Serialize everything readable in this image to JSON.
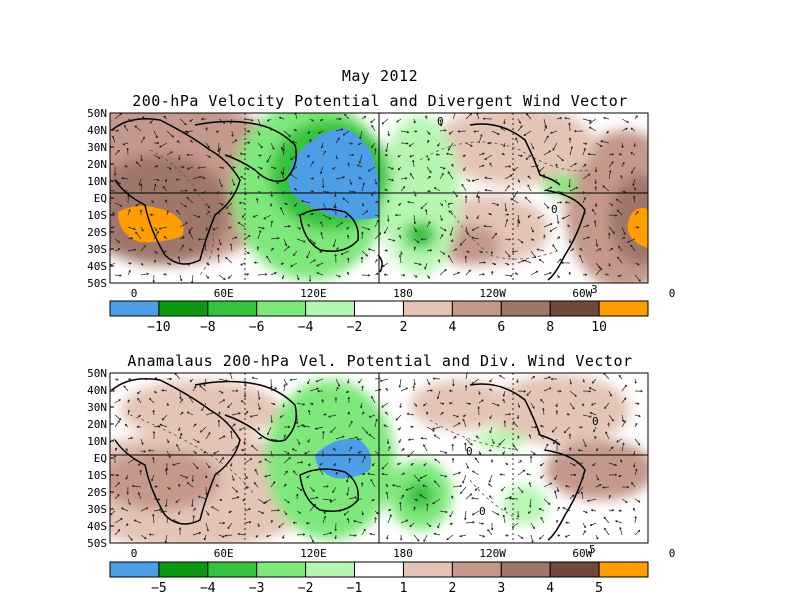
{
  "titles": {
    "month": "May 2012",
    "top": "200-hPa Velocity Potential and Divergent Wind Vector",
    "bottom": "Anamalaus 200-hPa Vel. Potential and Div. Wind Vector"
  },
  "axes": {
    "lat_labels": [
      "50N",
      "40N",
      "30N",
      "20N",
      "10N",
      "EQ",
      "10S",
      "20S",
      "30S",
      "40S",
      "50S"
    ],
    "lon_labels": [
      "0",
      "60E",
      "120E",
      "180",
      "120W",
      "60W",
      "0"
    ]
  },
  "vector_reference": {
    "top": "3",
    "bottom": "5"
  },
  "colorbar_top": {
    "labels": [
      "−10",
      "−8",
      "−6",
      "−4",
      "−2",
      "2",
      "4",
      "6",
      "8",
      "10"
    ],
    "colors": [
      "#4d9ee6",
      "#0d9a12",
      "#35c23d",
      "#7ee87a",
      "#b6f7b0",
      "#ffffff",
      "#e4c4b6",
      "#c4988a",
      "#a0766a",
      "#74493d",
      "#ff9e00"
    ]
  },
  "colorbar_bottom": {
    "labels": [
      "−5",
      "−4",
      "−3",
      "−2",
      "−1",
      "1",
      "2",
      "3",
      "4",
      "5"
    ],
    "colors": [
      "#4d9ee6",
      "#0d9a12",
      "#35c23d",
      "#7ee87a",
      "#b6f7b0",
      "#ffffff",
      "#e4c4b6",
      "#c4988a",
      "#a0766a",
      "#74493d",
      "#ff9e00"
    ]
  },
  "colors": {
    "blue": "#4d9ee6",
    "green_dark": "#0d9a12",
    "green": "#35c23d",
    "green_light": "#7ee87a",
    "green_pale": "#b6f7b0",
    "brown_pale": "#e4c4b6",
    "brown_light": "#c4988a",
    "brown": "#a0766a",
    "brown_dark": "#74493d",
    "orange": "#ff9e00"
  },
  "contour_labels": {
    "top": [
      "0",
      "0"
    ],
    "bottom": [
      "0",
      "0",
      "0"
    ]
  }
}
